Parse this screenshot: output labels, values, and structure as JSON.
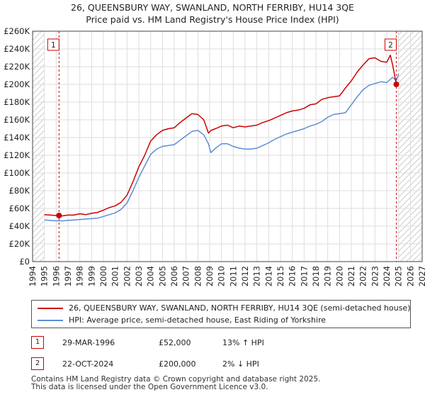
{
  "chart_data": {
    "type": "line",
    "title": "26, QUEENSBURY WAY, SWANLAND, NORTH FERRIBY, HU14 3QE",
    "subtitle": "Price paid vs. HM Land Registry's House Price Index (HPI)",
    "xlabel": "",
    "ylabel": "",
    "xlim": [
      1994,
      2027
    ],
    "ylim": [
      0,
      260000
    ],
    "xticks": [
      "1994",
      "1995",
      "1996",
      "1997",
      "1998",
      "1999",
      "2000",
      "2001",
      "2002",
      "2003",
      "2004",
      "2005",
      "2006",
      "2007",
      "2008",
      "2009",
      "2010",
      "2011",
      "2012",
      "2013",
      "2014",
      "2015",
      "2016",
      "2017",
      "2018",
      "2019",
      "2020",
      "2021",
      "2022",
      "2023",
      "2024",
      "2025",
      "2026",
      "2027"
    ],
    "yticks": [
      {
        "value": 0,
        "label": "£0"
      },
      {
        "value": 20000,
        "label": "£20K"
      },
      {
        "value": 40000,
        "label": "£40K"
      },
      {
        "value": 60000,
        "label": "£60K"
      },
      {
        "value": 80000,
        "label": "£80K"
      },
      {
        "value": 100000,
        "label": "£100K"
      },
      {
        "value": 120000,
        "label": "£120K"
      },
      {
        "value": 140000,
        "label": "£140K"
      },
      {
        "value": 160000,
        "label": "£160K"
      },
      {
        "value": 180000,
        "label": "£180K"
      },
      {
        "value": 200000,
        "label": "£200K"
      },
      {
        "value": 220000,
        "label": "£220K"
      },
      {
        "value": 240000,
        "label": "£240K"
      },
      {
        "value": 260000,
        "label": "£260K"
      }
    ],
    "grid": true,
    "hatched_before": 1995.0,
    "hatched_after": 2025.0,
    "series": [
      {
        "name": "26, QUEENSBURY WAY, SWANLAND, NORTH FERRIBY, HU14 3QE (semi-detached house)",
        "color": "#cc0000",
        "x": [
          1995.0,
          1995.5,
          1996.0,
          1996.24,
          1996.5,
          1997.0,
          1997.5,
          1998.0,
          1998.5,
          1999.0,
          1999.5,
          2000.0,
          2000.5,
          2001.0,
          2001.5,
          2002.0,
          2002.5,
          2003.0,
          2003.5,
          2004.0,
          2004.5,
          2005.0,
          2005.5,
          2006.0,
          2006.5,
          2007.0,
          2007.5,
          2008.0,
          2008.5,
          2008.9,
          2009.1,
          2009.5,
          2010.0,
          2010.5,
          2011.0,
          2011.5,
          2012.0,
          2012.5,
          2013.0,
          2013.5,
          2014.0,
          2014.5,
          2015.0,
          2015.5,
          2016.0,
          2016.5,
          2017.0,
          2017.5,
          2018.0,
          2018.5,
          2019.0,
          2019.5,
          2020.0,
          2020.5,
          2021.0,
          2021.5,
          2022.0,
          2022.5,
          2023.0,
          2023.5,
          2024.0,
          2024.3,
          2024.5,
          2024.81,
          2025.0
        ],
        "values": [
          53000,
          52500,
          52000,
          52000,
          51500,
          52500,
          52500,
          54000,
          53000,
          54500,
          55500,
          58000,
          61000,
          63000,
          67000,
          75000,
          90000,
          107000,
          120000,
          136000,
          143000,
          148000,
          150000,
          151000,
          157000,
          162000,
          167000,
          166000,
          160000,
          145000,
          148000,
          150000,
          153000,
          154000,
          151000,
          153000,
          152000,
          153000,
          154000,
          157000,
          159000,
          162000,
          165000,
          168000,
          170000,
          171000,
          173000,
          177000,
          178000,
          183000,
          185000,
          186000,
          187000,
          196000,
          204000,
          214000,
          222000,
          229000,
          230000,
          226000,
          225000,
          233000,
          222000,
          200000,
          202000
        ]
      },
      {
        "name": "HPI: Average price, semi-detached house, East Riding of Yorkshire",
        "color": "#5b8ed6",
        "x": [
          1995.0,
          1995.5,
          1996.0,
          1996.5,
          1997.0,
          1997.5,
          1998.0,
          1998.5,
          1999.0,
          1999.5,
          2000.0,
          2000.5,
          2001.0,
          2001.5,
          2002.0,
          2002.5,
          2003.0,
          2003.5,
          2004.0,
          2004.5,
          2005.0,
          2005.5,
          2006.0,
          2006.5,
          2007.0,
          2007.5,
          2008.0,
          2008.5,
          2008.9,
          2009.1,
          2009.5,
          2010.0,
          2010.5,
          2011.0,
          2011.5,
          2012.0,
          2012.5,
          2013.0,
          2013.5,
          2014.0,
          2014.5,
          2015.0,
          2015.5,
          2016.0,
          2016.5,
          2017.0,
          2017.5,
          2018.0,
          2018.5,
          2019.0,
          2019.5,
          2020.0,
          2020.5,
          2021.0,
          2021.5,
          2022.0,
          2022.5,
          2023.0,
          2023.5,
          2024.0,
          2024.5,
          2024.81,
          2025.0
        ],
        "values": [
          47000,
          46500,
          46000,
          46000,
          46500,
          47000,
          47500,
          48000,
          48500,
          49000,
          51000,
          53000,
          55000,
          59000,
          66000,
          80000,
          95000,
          108000,
          121000,
          127000,
          130000,
          131000,
          132000,
          137000,
          142000,
          147000,
          148000,
          143000,
          133000,
          123000,
          128000,
          133000,
          133000,
          130000,
          128000,
          127000,
          127000,
          128000,
          131000,
          134000,
          138000,
          141000,
          144000,
          146000,
          148000,
          150000,
          153000,
          155000,
          158000,
          163000,
          166000,
          167000,
          168000,
          177000,
          186000,
          194000,
          199000,
          201000,
          203000,
          202000,
          208000,
          204000,
          212000
        ]
      }
    ],
    "markers": [
      {
        "label": "1",
        "x": 1996.24,
        "value": 52000
      },
      {
        "label": "2",
        "x": 2024.81,
        "value": 200000
      }
    ]
  },
  "legend": {
    "items": [
      {
        "label": "26, QUEENSBURY WAY, SWANLAND, NORTH FERRIBY, HU14 3QE (semi-detached house)",
        "color": "#cc0000"
      },
      {
        "label": "HPI: Average price, semi-detached house, East Riding of Yorkshire",
        "color": "#5b8ed6"
      }
    ]
  },
  "sales": [
    {
      "num": "1",
      "date": "29-MAR-1996",
      "price": "£52,000",
      "hpi": "13% ↑ HPI"
    },
    {
      "num": "2",
      "date": "22-OCT-2024",
      "price": "£200,000",
      "hpi": "2% ↓ HPI"
    }
  ],
  "footer": {
    "line1": "Contains HM Land Registry data © Crown copyright and database right 2025.",
    "line2": "This data is licensed under the Open Government Licence v3.0."
  }
}
